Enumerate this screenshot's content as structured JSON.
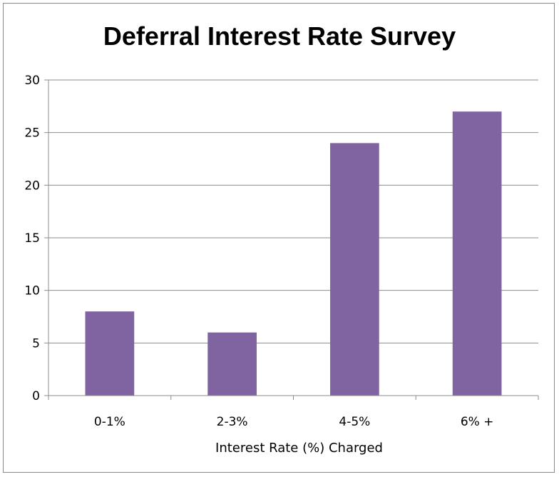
{
  "chart_data": {
    "type": "bar",
    "title": "Deferral Interest Rate Survey",
    "xlabel": "Interest Rate (%) Charged",
    "ylabel": "",
    "categories": [
      "0-1%",
      "2-3%",
      "4-5%",
      "6% +"
    ],
    "values": [
      8,
      6,
      24,
      27
    ],
    "ylim": [
      0,
      30
    ],
    "yticks": [
      0,
      5,
      10,
      15,
      20,
      25,
      30
    ],
    "grid": true,
    "legend": "none",
    "bar_color": "#8064a2",
    "grid_color": "#8c8c8c"
  }
}
